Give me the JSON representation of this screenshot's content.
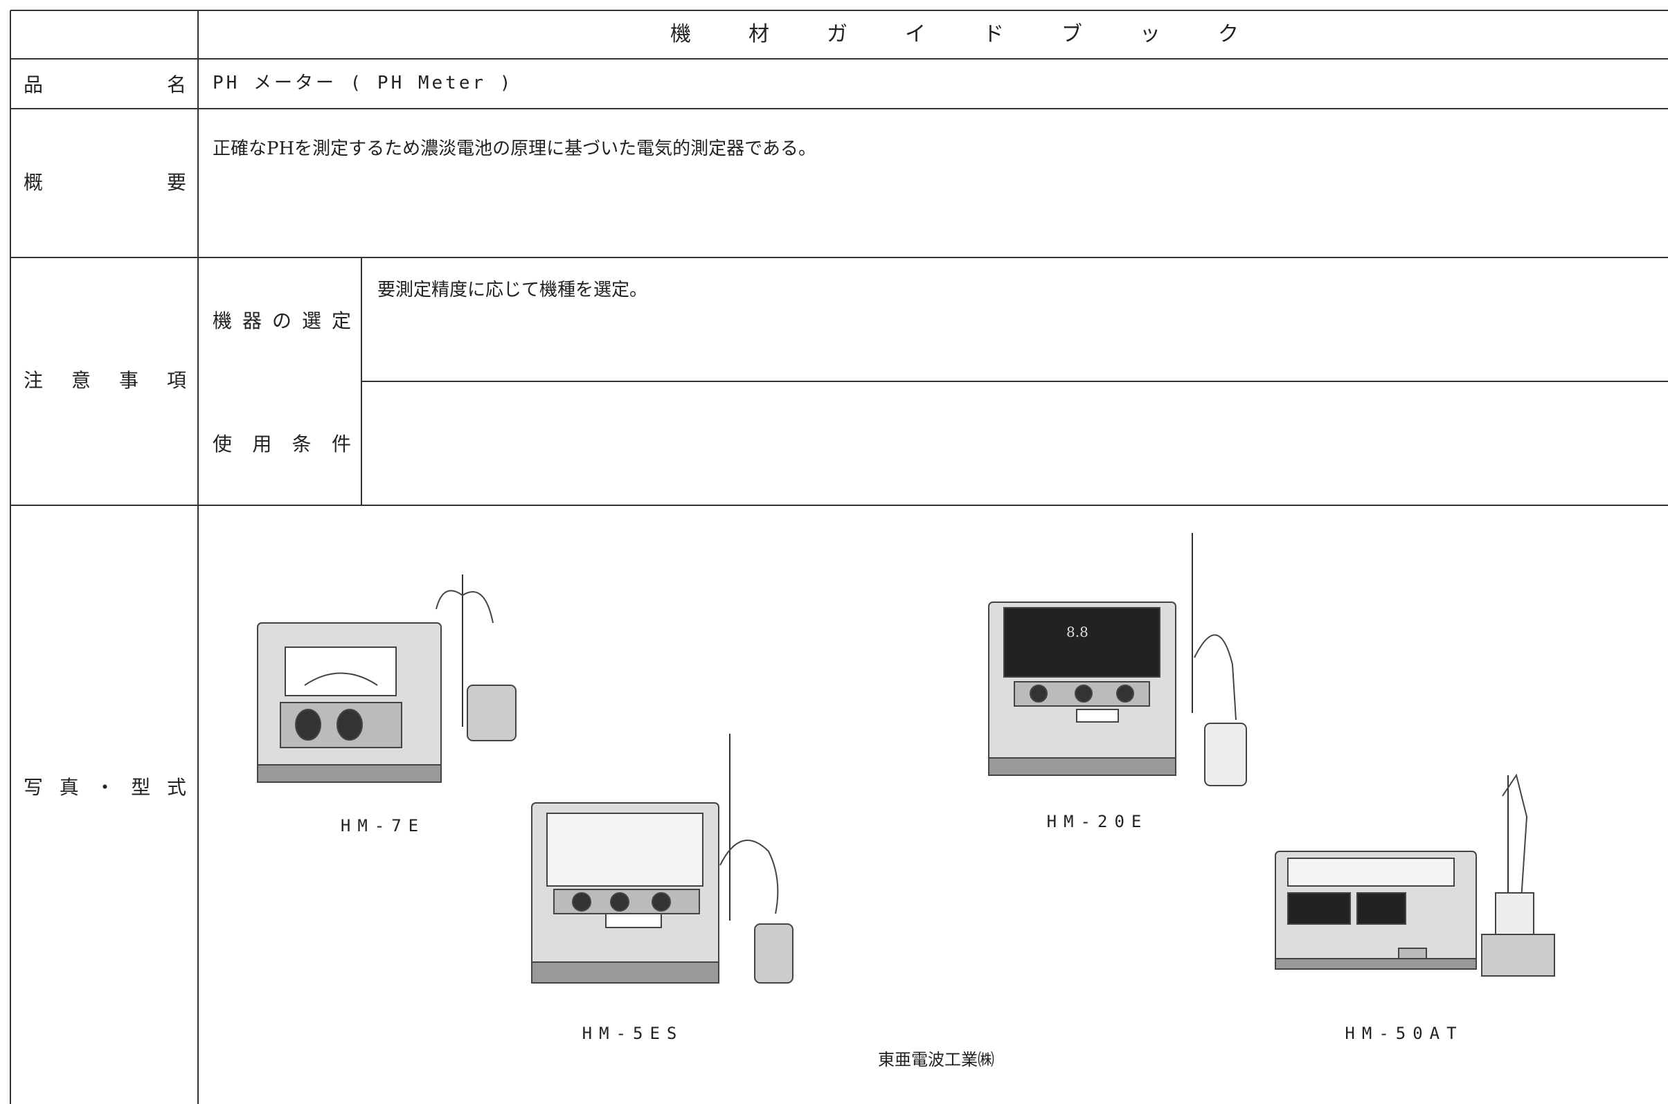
{
  "header": {
    "title": "機材ガイドブック"
  },
  "rows": [
    {
      "label": "品名",
      "value": "PH メーター ( PH Meter )"
    },
    {
      "label": "概要",
      "value": "正確なPHを測定するため濃淡電池の原理に基づいた電気的測定器である。"
    },
    {
      "label": "注意事項",
      "items": [
        {
          "label": "機器の選定",
          "value": "要測定精度に応じて機種を選定。"
        },
        {
          "label": "使用条件"
        }
      ]
    },
    {
      "label": "写真・型式",
      "models": [
        "HM-7E",
        "HM-5ES",
        "HM-20E",
        "HM-50AT"
      ],
      "maker": "東亜電波工業㈱"
    }
  ]
}
